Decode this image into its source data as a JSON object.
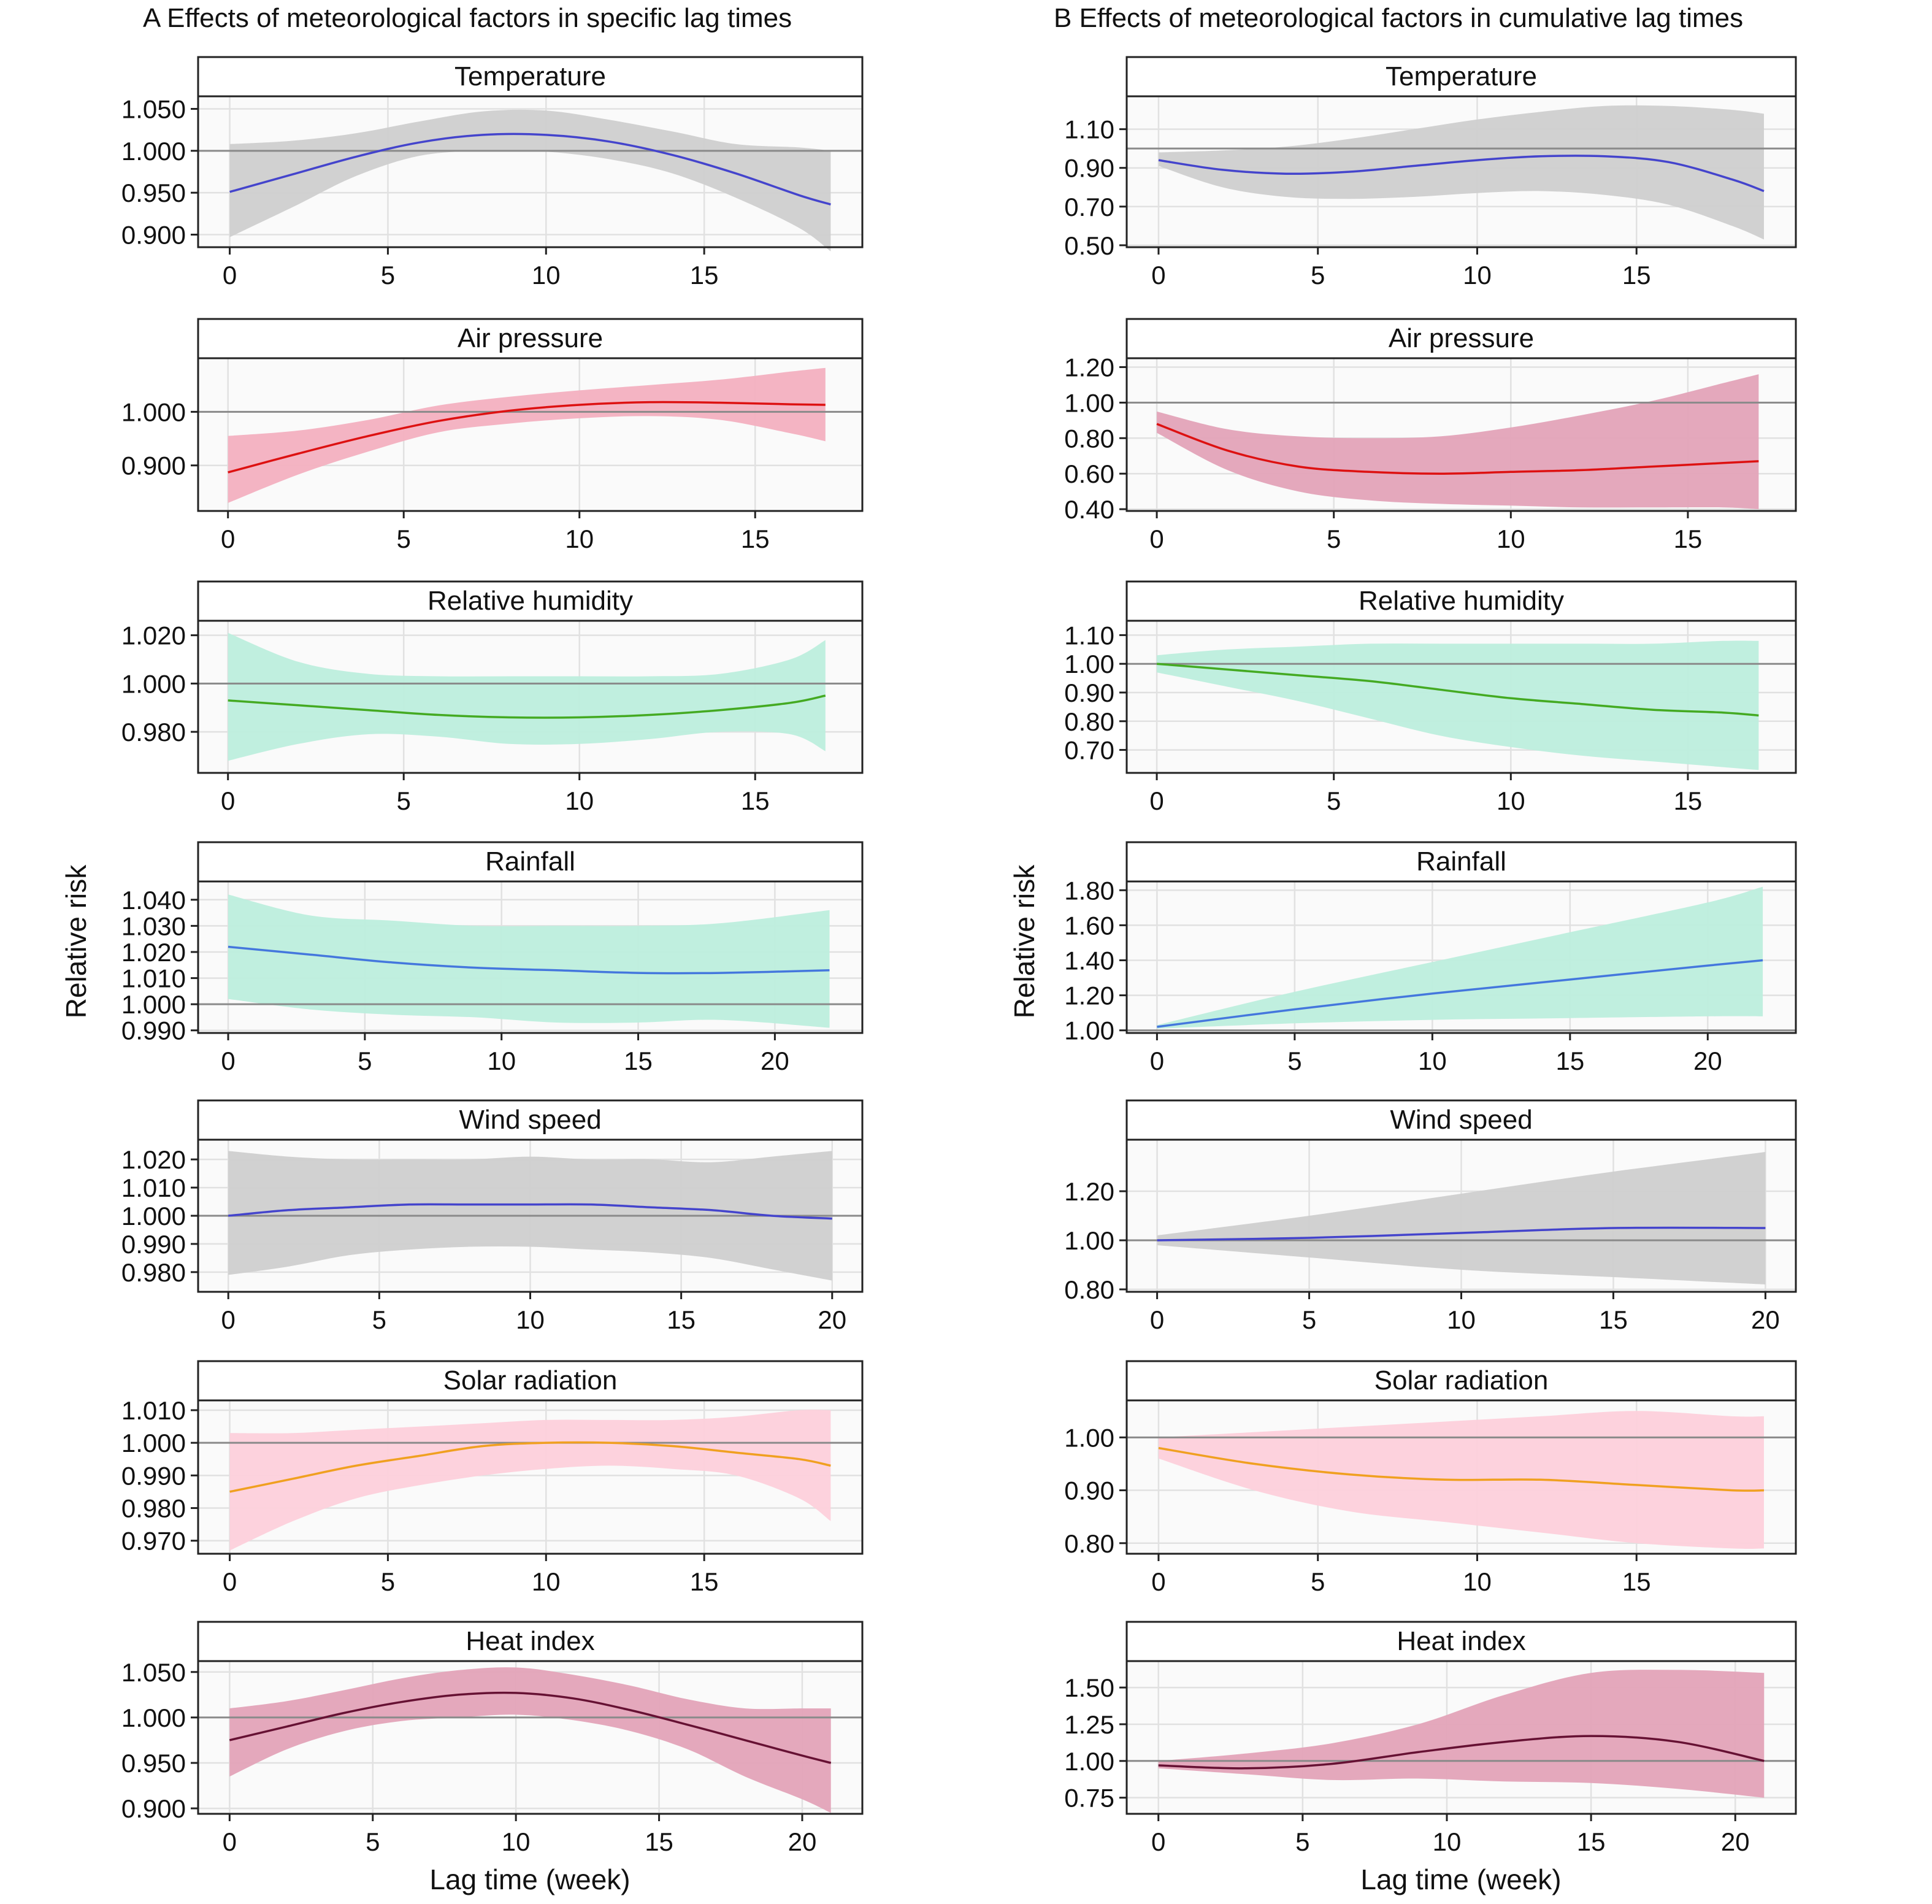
{
  "columns": [
    {
      "title": "A  Effects of meteorological factors in specific lag times"
    },
    {
      "title": "B  Effects of meteorological factors in cumulative lag times"
    }
  ],
  "xlabel": "Lag time (week)",
  "ylabel": "Relative risk",
  "reference_value": 1,
  "chart_data": [
    {
      "type": "area",
      "column": 0,
      "title": "Temperature",
      "line_color": "#4444cc",
      "band_color": "#cfcfcf",
      "x": [
        0,
        2,
        4,
        6,
        8,
        10,
        12,
        14,
        16,
        18,
        19
      ],
      "y": [
        0.951,
        0.972,
        0.993,
        1.01,
        1.019,
        1.019,
        1.011,
        0.995,
        0.973,
        0.947,
        0.936
      ],
      "lower": [
        0.897,
        0.933,
        0.97,
        0.994,
        1.0,
        0.999,
        0.99,
        0.973,
        0.944,
        0.908,
        0.88
      ],
      "upper": [
        1.008,
        1.012,
        1.021,
        1.035,
        1.047,
        1.048,
        1.037,
        1.023,
        1.008,
        1.004,
        1.0
      ],
      "ylim": [
        0.885,
        1.065
      ],
      "yticks": [
        0.9,
        0.95,
        1.0,
        1.05
      ],
      "ytick_labels": [
        "0.900",
        "0.950",
        "1.000",
        "1.050"
      ],
      "xlim": [
        -1,
        20
      ],
      "xticks": [
        0,
        5,
        10,
        15
      ],
      "xtick_labels": [
        "0",
        "5",
        "10",
        "15"
      ]
    },
    {
      "type": "area",
      "column": 0,
      "title": "Air pressure",
      "line_color": "#dd1111",
      "band_color": "#f3b0c0",
      "x": [
        0,
        2,
        4,
        6,
        8,
        10,
        12,
        14,
        16,
        17
      ],
      "y": [
        0.887,
        0.922,
        0.955,
        0.983,
        1.002,
        1.013,
        1.018,
        1.017,
        1.014,
        1.013
      ],
      "lower": [
        0.83,
        0.883,
        0.926,
        0.962,
        0.978,
        0.988,
        0.992,
        0.985,
        0.96,
        0.945
      ],
      "upper": [
        0.955,
        0.965,
        0.985,
        1.012,
        1.028,
        1.04,
        1.05,
        1.06,
        1.075,
        1.082
      ],
      "ylim": [
        0.815,
        1.1
      ],
      "yticks": [
        0.9,
        1.0
      ],
      "ytick_labels": [
        "0.900",
        "1.000"
      ],
      "xlim": [
        -0.85,
        18.05
      ],
      "xticks": [
        0,
        5,
        10,
        15
      ],
      "xtick_labels": [
        "0",
        "5",
        "10",
        "15"
      ]
    },
    {
      "type": "area",
      "column": 0,
      "title": "Relative humidity",
      "line_color": "#44aa22",
      "band_color": "#bdeedd",
      "x": [
        0,
        2,
        4,
        6,
        8,
        10,
        12,
        14,
        16,
        17
      ],
      "y": [
        0.993,
        0.991,
        0.989,
        0.987,
        0.986,
        0.986,
        0.987,
        0.989,
        0.992,
        0.995
      ],
      "lower": [
        0.968,
        0.975,
        0.979,
        0.978,
        0.975,
        0.975,
        0.977,
        0.98,
        0.979,
        0.972
      ],
      "upper": [
        1.021,
        1.009,
        1.004,
        1.003,
        1.003,
        1.003,
        1.003,
        1.004,
        1.01,
        1.018
      ],
      "ylim": [
        0.963,
        1.026
      ],
      "yticks": [
        0.98,
        1.0,
        1.02
      ],
      "ytick_labels": [
        "0.980",
        "1.000",
        "1.020"
      ],
      "xlim": [
        -0.85,
        18.05
      ],
      "xticks": [
        0,
        5,
        10,
        15
      ],
      "xtick_labels": [
        "0",
        "5",
        "10",
        "15"
      ]
    },
    {
      "type": "area",
      "column": 0,
      "title": "Rainfall",
      "line_color": "#4477dd",
      "band_color": "#bdeedd",
      "x": [
        0,
        3,
        6,
        9,
        12,
        15,
        18,
        22
      ],
      "y": [
        1.022,
        1.019,
        1.016,
        1.014,
        1.013,
        1.012,
        1.012,
        1.013
      ],
      "lower": [
        1.002,
        0.998,
        0.996,
        0.995,
        0.993,
        0.993,
        0.994,
        0.991
      ],
      "upper": [
        1.042,
        1.034,
        1.032,
        1.03,
        1.03,
        1.03,
        1.031,
        1.036
      ],
      "ylim": [
        0.989,
        1.047
      ],
      "yticks": [
        0.99,
        1.0,
        1.01,
        1.02,
        1.03,
        1.04
      ],
      "ytick_labels": [
        "0.990",
        "1.000",
        "1.010",
        "1.020",
        "1.030",
        "1.040"
      ],
      "xlim": [
        -1.1,
        23.2
      ],
      "xticks": [
        0,
        5,
        10,
        15,
        20
      ],
      "xtick_labels": [
        "0",
        "5",
        "10",
        "15",
        "20"
      ]
    },
    {
      "type": "area",
      "column": 0,
      "title": "Wind speed",
      "line_color": "#4444cc",
      "band_color": "#cfcfcf",
      "x": [
        0,
        2,
        4,
        6,
        8,
        10,
        12,
        14,
        16,
        18,
        20
      ],
      "y": [
        1.0,
        1.002,
        1.003,
        1.004,
        1.004,
        1.004,
        1.004,
        1.003,
        1.002,
        1.0,
        0.999
      ],
      "lower": [
        0.979,
        0.982,
        0.986,
        0.988,
        0.989,
        0.989,
        0.988,
        0.987,
        0.985,
        0.981,
        0.977
      ],
      "upper": [
        1.023,
        1.021,
        1.02,
        1.02,
        1.02,
        1.021,
        1.02,
        1.02,
        1.019,
        1.021,
        1.023
      ],
      "ylim": [
        0.973,
        1.027
      ],
      "yticks": [
        0.98,
        0.99,
        1.0,
        1.01,
        1.02
      ],
      "ytick_labels": [
        "0.980",
        "0.990",
        "1.000",
        "1.010",
        "1.020"
      ],
      "xlim": [
        -1,
        21
      ],
      "xticks": [
        0,
        5,
        10,
        15,
        20
      ],
      "xtick_labels": [
        "0",
        "5",
        "10",
        "15",
        "20"
      ]
    },
    {
      "type": "area",
      "column": 0,
      "title": "Solar radiation",
      "line_color": "#f0a020",
      "band_color": "#fdd0db",
      "x": [
        0,
        2,
        4,
        6,
        8,
        10,
        12,
        14,
        16,
        18,
        19
      ],
      "y": [
        0.985,
        0.989,
        0.993,
        0.996,
        0.999,
        1.0,
        1.0,
        0.999,
        0.997,
        0.995,
        0.993
      ],
      "lower": [
        0.967,
        0.976,
        0.983,
        0.987,
        0.99,
        0.992,
        0.993,
        0.992,
        0.99,
        0.983,
        0.976
      ],
      "upper": [
        1.003,
        1.003,
        1.004,
        1.005,
        1.006,
        1.007,
        1.007,
        1.007,
        1.008,
        1.01,
        1.01
      ],
      "ylim": [
        0.966,
        1.013
      ],
      "yticks": [
        0.97,
        0.98,
        0.99,
        1.0,
        1.01
      ],
      "ytick_labels": [
        "0.970",
        "0.980",
        "0.990",
        "1.000",
        "1.010"
      ],
      "xlim": [
        -1,
        20
      ],
      "xticks": [
        0,
        5,
        10,
        15
      ],
      "xtick_labels": [
        "0",
        "5",
        "10",
        "15"
      ]
    },
    {
      "type": "area",
      "column": 0,
      "title": "Heat index",
      "line_color": "#661133",
      "band_color": "#e3a3b8",
      "x": [
        0,
        2,
        4,
        6,
        8,
        10,
        12,
        14,
        16,
        18,
        20,
        21
      ],
      "y": [
        0.975,
        0.99,
        1.005,
        1.017,
        1.025,
        1.027,
        1.021,
        1.008,
        0.992,
        0.975,
        0.958,
        0.95
      ],
      "lower": [
        0.935,
        0.965,
        0.985,
        0.996,
        1.0,
        1.003,
        0.997,
        0.985,
        0.965,
        0.935,
        0.91,
        0.895
      ],
      "upper": [
        1.01,
        1.018,
        1.03,
        1.043,
        1.052,
        1.055,
        1.047,
        1.035,
        1.02,
        1.01,
        1.01,
        1.01
      ],
      "ylim": [
        0.894,
        1.062
      ],
      "yticks": [
        0.9,
        0.95,
        1.0,
        1.05
      ],
      "ytick_labels": [
        "0.900",
        "0.950",
        "1.000",
        "1.050"
      ],
      "xlim": [
        -1.1,
        22.1
      ],
      "xticks": [
        0,
        5,
        10,
        15,
        20
      ],
      "xtick_labels": [
        "0",
        "5",
        "10",
        "15",
        "20"
      ]
    },
    {
      "type": "area",
      "column": 1,
      "title": "Temperature",
      "line_color": "#4444cc",
      "band_color": "#cfcfcf",
      "x": [
        0,
        2,
        4,
        6,
        8,
        10,
        12,
        14,
        16,
        18,
        19
      ],
      "y": [
        0.94,
        0.89,
        0.87,
        0.88,
        0.91,
        0.94,
        0.96,
        0.96,
        0.93,
        0.84,
        0.78
      ],
      "lower": [
        0.91,
        0.8,
        0.75,
        0.74,
        0.75,
        0.77,
        0.78,
        0.76,
        0.71,
        0.6,
        0.53
      ],
      "upper": [
        0.98,
        0.99,
        1.01,
        1.05,
        1.1,
        1.15,
        1.19,
        1.22,
        1.22,
        1.2,
        1.18
      ],
      "ylim": [
        0.49,
        1.27
      ],
      "yticks": [
        0.5,
        0.7,
        0.9,
        1.1
      ],
      "ytick_labels": [
        "0.50",
        "0.70",
        "0.90",
        "1.10"
      ],
      "xlim": [
        -1,
        20
      ],
      "xticks": [
        0,
        5,
        10,
        15
      ],
      "xtick_labels": [
        "0",
        "5",
        "10",
        "15"
      ]
    },
    {
      "type": "area",
      "column": 1,
      "title": "Air pressure",
      "line_color": "#dd1111",
      "band_color": "#e3a3b8",
      "x": [
        0,
        2,
        4,
        6,
        8,
        10,
        12,
        14,
        16,
        17
      ],
      "y": [
        0.88,
        0.73,
        0.64,
        0.61,
        0.6,
        0.61,
        0.62,
        0.64,
        0.66,
        0.67
      ],
      "lower": [
        0.83,
        0.62,
        0.5,
        0.45,
        0.43,
        0.42,
        0.41,
        0.41,
        0.41,
        0.4
      ],
      "upper": [
        0.95,
        0.85,
        0.81,
        0.8,
        0.81,
        0.86,
        0.93,
        1.01,
        1.11,
        1.16
      ],
      "ylim": [
        0.39,
        1.25
      ],
      "yticks": [
        0.4,
        0.6,
        0.8,
        1.0,
        1.2
      ],
      "ytick_labels": [
        "0.40",
        "0.60",
        "0.80",
        "1.00",
        "1.20"
      ],
      "xlim": [
        -0.85,
        18.05
      ],
      "xticks": [
        0,
        5,
        10,
        15
      ],
      "xtick_labels": [
        "0",
        "5",
        "10",
        "15"
      ]
    },
    {
      "type": "area",
      "column": 1,
      "title": "Relative humidity",
      "line_color": "#44aa22",
      "band_color": "#bdeedd",
      "x": [
        0,
        2,
        4,
        6,
        8,
        10,
        12,
        14,
        16,
        17
      ],
      "y": [
        1.0,
        0.98,
        0.96,
        0.94,
        0.91,
        0.88,
        0.86,
        0.84,
        0.83,
        0.82
      ],
      "lower": [
        0.97,
        0.92,
        0.87,
        0.81,
        0.75,
        0.71,
        0.68,
        0.66,
        0.64,
        0.63
      ],
      "upper": [
        1.03,
        1.05,
        1.06,
        1.07,
        1.07,
        1.07,
        1.07,
        1.07,
        1.08,
        1.08
      ],
      "ylim": [
        0.62,
        1.15
      ],
      "yticks": [
        0.7,
        0.8,
        0.9,
        1.0,
        1.1
      ],
      "ytick_labels": [
        "0.70",
        "0.80",
        "0.90",
        "1.00",
        "1.10"
      ],
      "xlim": [
        -0.85,
        18.05
      ],
      "xticks": [
        0,
        5,
        10,
        15
      ],
      "xtick_labels": [
        "0",
        "5",
        "10",
        "15"
      ]
    },
    {
      "type": "area",
      "column": 1,
      "title": "Rainfall",
      "line_color": "#4477dd",
      "band_color": "#bdeedd",
      "x": [
        0,
        5,
        10,
        15,
        20,
        22
      ],
      "y": [
        1.02,
        1.12,
        1.21,
        1.29,
        1.37,
        1.4
      ],
      "lower": [
        1.01,
        1.04,
        1.06,
        1.07,
        1.08,
        1.08
      ],
      "upper": [
        1.03,
        1.22,
        1.39,
        1.56,
        1.73,
        1.82
      ],
      "ylim": [
        0.985,
        1.85
      ],
      "yticks": [
        1.0,
        1.2,
        1.4,
        1.6,
        1.8
      ],
      "ytick_labels": [
        "1.00",
        "1.20",
        "1.40",
        "1.60",
        "1.80"
      ],
      "xlim": [
        -1.1,
        23.2
      ],
      "xticks": [
        0,
        5,
        10,
        15,
        20
      ],
      "xtick_labels": [
        "0",
        "5",
        "10",
        "15",
        "20"
      ]
    },
    {
      "type": "area",
      "column": 1,
      "title": "Wind speed",
      "line_color": "#4444cc",
      "band_color": "#cfcfcf",
      "x": [
        0,
        5,
        10,
        15,
        20
      ],
      "y": [
        1.0,
        1.01,
        1.03,
        1.05,
        1.05
      ],
      "lower": [
        0.98,
        0.93,
        0.88,
        0.85,
        0.82
      ],
      "upper": [
        1.02,
        1.1,
        1.19,
        1.28,
        1.36
      ],
      "ylim": [
        0.79,
        1.41
      ],
      "yticks": [
        0.8,
        1.0,
        1.2
      ],
      "ytick_labels": [
        "0.80",
        "1.00",
        "1.20"
      ],
      "xlim": [
        -1,
        21
      ],
      "xticks": [
        0,
        5,
        10,
        15,
        20
      ],
      "xtick_labels": [
        "0",
        "5",
        "10",
        "15",
        "20"
      ]
    },
    {
      "type": "area",
      "column": 1,
      "title": "Solar radiation",
      "line_color": "#f0a020",
      "band_color": "#fdd0db",
      "x": [
        0,
        3,
        6,
        9,
        12,
        15,
        18,
        19
      ],
      "y": [
        0.98,
        0.95,
        0.93,
        0.92,
        0.92,
        0.91,
        0.9,
        0.9
      ],
      "lower": [
        0.96,
        0.9,
        0.86,
        0.84,
        0.82,
        0.8,
        0.79,
        0.79
      ],
      "upper": [
        1.0,
        1.01,
        1.02,
        1.03,
        1.04,
        1.05,
        1.04,
        1.04
      ],
      "ylim": [
        0.78,
        1.07
      ],
      "yticks": [
        0.8,
        0.9,
        1.0
      ],
      "ytick_labels": [
        "0.80",
        "0.90",
        "1.00"
      ],
      "xlim": [
        -1,
        20
      ],
      "xticks": [
        0,
        5,
        10,
        15
      ],
      "xtick_labels": [
        "0",
        "5",
        "10",
        "15"
      ]
    },
    {
      "type": "area",
      "column": 1,
      "title": "Heat index",
      "line_color": "#661133",
      "band_color": "#e3a3b8",
      "x": [
        0,
        3,
        6,
        9,
        12,
        15,
        18,
        21
      ],
      "y": [
        0.97,
        0.95,
        0.98,
        1.06,
        1.13,
        1.17,
        1.13,
        1.0
      ],
      "lower": [
        0.95,
        0.91,
        0.87,
        0.88,
        0.86,
        0.85,
        0.81,
        0.75
      ],
      "upper": [
        1.0,
        1.05,
        1.12,
        1.25,
        1.45,
        1.6,
        1.62,
        1.6
      ],
      "ylim": [
        0.64,
        1.68
      ],
      "yticks": [
        0.75,
        1.0,
        1.25,
        1.5
      ],
      "ytick_labels": [
        "0.75",
        "1.00",
        "1.25",
        "1.50"
      ],
      "xlim": [
        -1.1,
        22.1
      ],
      "xticks": [
        0,
        5,
        10,
        15,
        20
      ],
      "xtick_labels": [
        "0",
        "5",
        "10",
        "15",
        "20"
      ]
    }
  ]
}
